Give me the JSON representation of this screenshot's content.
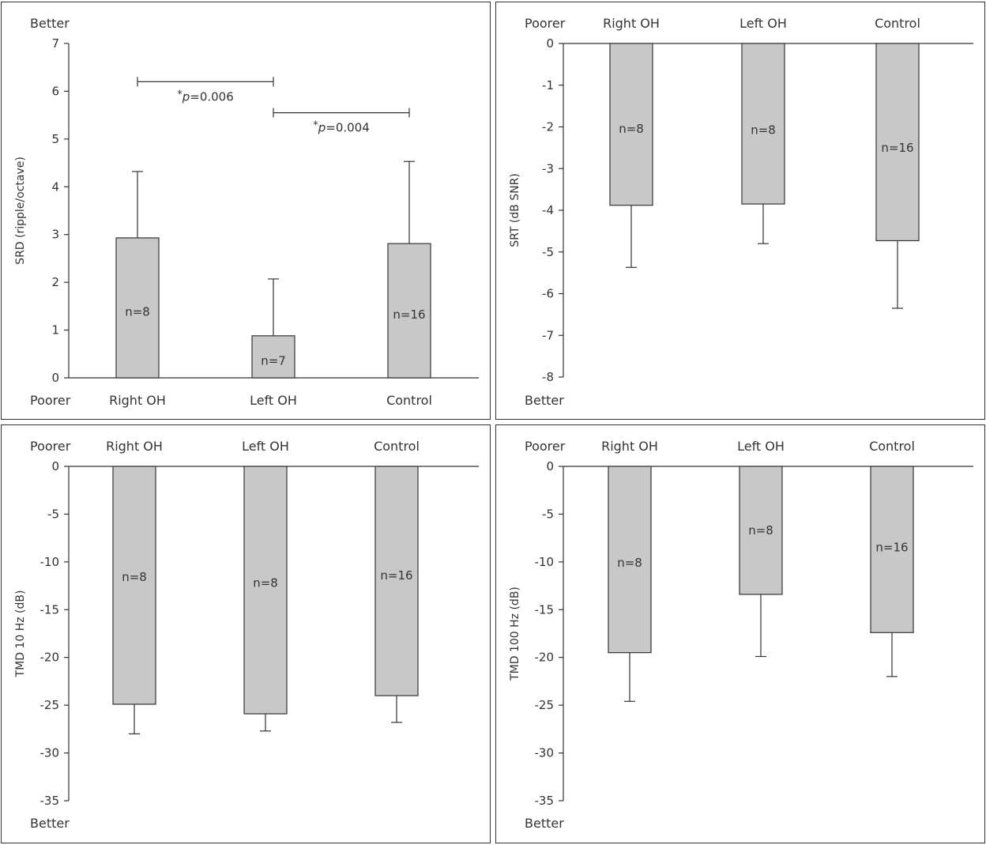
{
  "chart_data": [
    {
      "type": "bar",
      "ylabel": "SRD (ripple/octave)",
      "top_label": "Better",
      "bottom_label": "Poorer",
      "category_position": "bottom",
      "categories": [
        "Right OH",
        "Left OH",
        "Control"
      ],
      "values": [
        2.93,
        0.88,
        2.81
      ],
      "error_upper": [
        4.32,
        2.07,
        4.53
      ],
      "n_labels": [
        "n=8",
        "n=7",
        "n=16"
      ],
      "ylim": [
        0,
        7
      ],
      "yticks": [
        0,
        1,
        2,
        3,
        4,
        5,
        6,
        7
      ],
      "significance": [
        {
          "from": 0,
          "to": 1,
          "y": 6.2,
          "star": "*",
          "p": "p",
          "value": "=0.006"
        },
        {
          "from": 1,
          "to": 2,
          "y": 5.55,
          "star": "*",
          "p": "p",
          "value": "=0.004"
        }
      ]
    },
    {
      "type": "bar",
      "ylabel": "SRT (dB SNR)",
      "top_label": "Poorer",
      "bottom_label": "Better",
      "category_position": "top",
      "categories": [
        "Right OH",
        "Left OH",
        "Control"
      ],
      "values": [
        -3.88,
        -3.85,
        -4.73
      ],
      "error_lower": [
        -5.37,
        -4.8,
        -6.35
      ],
      "n_labels": [
        "n=8",
        "n=8",
        "n=16"
      ],
      "n_label_y": [
        -2.05,
        -2.08,
        -2.5
      ],
      "ylim": [
        -8,
        0
      ],
      "yticks": [
        0,
        -1,
        -2,
        -3,
        -4,
        -5,
        -6,
        -7,
        -8
      ]
    },
    {
      "type": "bar",
      "ylabel": "TMD 10 Hz (dB)",
      "top_label": "Poorer",
      "bottom_label": "Better",
      "category_position": "top",
      "categories": [
        "Right OH",
        "Left OH",
        "Control"
      ],
      "values": [
        -24.9,
        -25.9,
        -24.0
      ],
      "error_lower": [
        -28.0,
        -27.7,
        -26.8
      ],
      "n_labels": [
        "n=8",
        "n=8",
        "n=16"
      ],
      "n_label_y": [
        -11.6,
        -12.2,
        -11.4
      ],
      "ylim": [
        -35,
        0
      ],
      "yticks": [
        0,
        -5,
        -10,
        -15,
        -20,
        -25,
        -30,
        -35
      ]
    },
    {
      "type": "bar",
      "ylabel": "TMD 100 Hz (dB)",
      "top_label": "Poorer",
      "bottom_label": "Better",
      "category_position": "top",
      "categories": [
        "Right OH",
        "Left OH",
        "Control"
      ],
      "values": [
        -19.5,
        -13.4,
        -17.4
      ],
      "error_lower": [
        -24.6,
        -19.9,
        -22.0
      ],
      "n_labels": [
        "n=8",
        "n=8",
        "n=16"
      ],
      "n_label_y": [
        -10.1,
        -6.7,
        -8.5
      ],
      "ylim": [
        -35,
        0
      ],
      "yticks": [
        0,
        -5,
        -10,
        -15,
        -20,
        -25,
        -30,
        -35
      ]
    }
  ]
}
